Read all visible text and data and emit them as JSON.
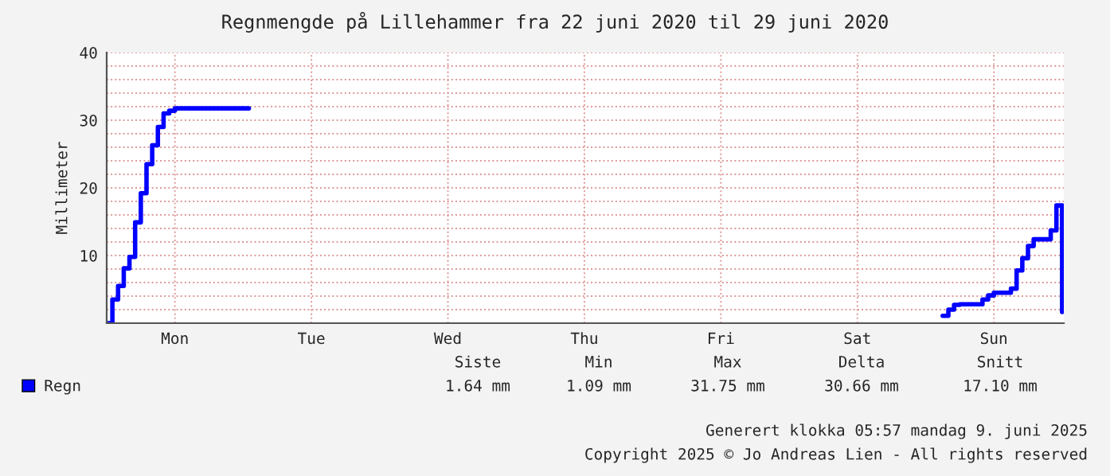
{
  "chart_data": {
    "type": "step",
    "title": "Regnmengde på Lillehammer fra 22 juni 2020 til 29 juni 2020",
    "ylabel": "Millimeter",
    "categories": [
      null,
      null,
      null,
      null,
      null,
      null,
      null,
      null,
      null,
      null,
      null,
      null,
      "Mon",
      null,
      null,
      null,
      null,
      null,
      null,
      null,
      null,
      null,
      null,
      null,
      null,
      null,
      null,
      null,
      null,
      null,
      null,
      null,
      null,
      null,
      null,
      null,
      "Tue",
      null,
      null,
      null,
      null,
      null,
      null,
      null,
      null,
      null,
      null,
      null,
      null,
      null,
      null,
      null,
      null,
      null,
      null,
      null,
      null,
      null,
      null,
      null,
      "Wed",
      null,
      null,
      null,
      null,
      null,
      null,
      null,
      null,
      null,
      null,
      null,
      null,
      null,
      null,
      null,
      null,
      null,
      null,
      null,
      null,
      null,
      null,
      null,
      "Thu",
      null,
      null,
      null,
      null,
      null,
      null,
      null,
      null,
      null,
      null,
      null,
      null,
      null,
      null,
      null,
      null,
      null,
      null,
      null,
      null,
      null,
      null,
      null,
      "Fri",
      null,
      null,
      null,
      null,
      null,
      null,
      null,
      null,
      null,
      null,
      null,
      null,
      null,
      null,
      null,
      null,
      null,
      null,
      null,
      null,
      null,
      null,
      null,
      "Sat",
      null,
      null,
      null,
      null,
      null,
      null,
      null,
      null,
      null,
      null,
      null,
      null,
      null,
      null,
      null,
      null,
      null,
      null,
      null,
      null,
      null,
      null,
      null,
      "Sun",
      null,
      null,
      null,
      null,
      null,
      null,
      null,
      null,
      null,
      null,
      null,
      null
    ],
    "ylim": [
      0,
      40
    ],
    "yticks": [
      {
        "value": 2,
        "label": null
      },
      {
        "value": 4,
        "label": null
      },
      {
        "value": 6,
        "label": null
      },
      {
        "value": 8,
        "label": null
      },
      10,
      {
        "value": 12,
        "label": null
      },
      {
        "value": 14,
        "label": null
      },
      {
        "value": 16,
        "label": null
      },
      {
        "value": 18,
        "label": null
      },
      20,
      {
        "value": 22,
        "label": null
      },
      {
        "value": 24,
        "label": null
      },
      {
        "value": 26,
        "label": null
      },
      {
        "value": 28,
        "label": null
      },
      30,
      {
        "value": 32,
        "label": null
      },
      {
        "value": 34,
        "label": null
      },
      {
        "value": 36,
        "label": null
      },
      {
        "value": 38,
        "label": null
      },
      40
    ],
    "grid": true,
    "legend": "bottom left",
    "line_style": "solid",
    "marker": "none",
    "series": [
      {
        "name": "Regn",
        "color": "#0000ff",
        "values": [
          0,
          3.5,
          5.5,
          8.1,
          9.8,
          14.9,
          19.2,
          23.5,
          26.3,
          29,
          31,
          31.4,
          31.75,
          31.75,
          31.75,
          31.75,
          31.75,
          31.75,
          31.75,
          31.75,
          31.75,
          31.75,
          31.75,
          31.75,
          31.75,
          null,
          null,
          null,
          null,
          null,
          null,
          null,
          null,
          null,
          null,
          null,
          null,
          null,
          null,
          null,
          null,
          null,
          null,
          null,
          null,
          null,
          null,
          null,
          null,
          null,
          null,
          null,
          null,
          null,
          null,
          null,
          null,
          null,
          null,
          null,
          null,
          null,
          null,
          null,
          null,
          null,
          null,
          null,
          null,
          null,
          null,
          null,
          null,
          null,
          null,
          null,
          null,
          null,
          null,
          null,
          null,
          null,
          null,
          null,
          null,
          null,
          null,
          null,
          null,
          null,
          null,
          null,
          null,
          null,
          null,
          null,
          null,
          null,
          null,
          null,
          null,
          null,
          null,
          null,
          null,
          null,
          null,
          null,
          null,
          null,
          null,
          null,
          null,
          null,
          null,
          null,
          null,
          null,
          null,
          null,
          null,
          null,
          null,
          null,
          null,
          null,
          null,
          null,
          null,
          null,
          null,
          null,
          null,
          null,
          null,
          null,
          null,
          null,
          null,
          null,
          null,
          null,
          null,
          null,
          null,
          null,
          null,
          1.09,
          2,
          2.7,
          2.8,
          2.8,
          2.8,
          2.8,
          3.5,
          4.1,
          4.5,
          4.5,
          4.5,
          5.1,
          7.8,
          9.6,
          11.4,
          12.4,
          12.4,
          12.4,
          13.7,
          17.4,
          1.64
        ]
      }
    ],
    "annotations": [
      "Siste",
      "Min",
      "Max",
      "Delta",
      "Snitt",
      "1.64 mm",
      "1.09 mm",
      "31.75 mm",
      "30.66 mm",
      "17.10 mm",
      "Generert klokka 05:57 mandag 9. juni 2025",
      "Copyright 2025 © Jo Andreas Lien - All rights reserved"
    ]
  }
}
